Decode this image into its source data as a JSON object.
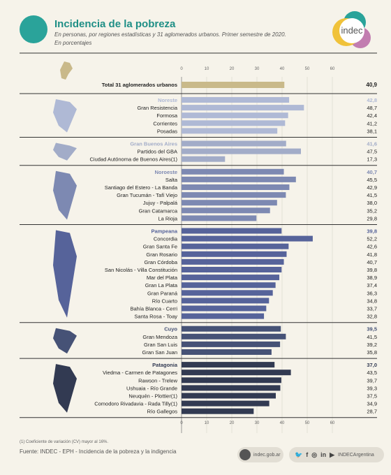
{
  "header": {
    "title": "Incidencia de la pobreza",
    "subtitle": "En personas, por regiones estadísticas y 31 aglomerados urbanos. Primer semestre de 2020.",
    "units": "En porcentajes",
    "logo_text": "indec"
  },
  "footer": {
    "footnote": "(1) Coeficiente de variación (CV) mayor al 16%.",
    "source": "Fuente: INDEC - EPH - Incidencia de la pobreza y la indigencia",
    "website": "indec.gob.ar",
    "social_handle": "INDECArgentina"
  },
  "colors": {
    "title": "#1f8f86",
    "total": "#c9b98a",
    "noreste": "#afb9d5",
    "gba": "#a2acc8",
    "noroeste": "#7d89b2",
    "pampeana": "#56639a",
    "cuyo": "#465276",
    "patagonia": "#323a52"
  },
  "chart_data": {
    "type": "bar",
    "orientation": "horizontal",
    "xlim": [
      0,
      60
    ],
    "xticks": [
      "0",
      "10",
      "20",
      "30",
      "40",
      "50",
      "60"
    ],
    "total": {
      "label": "Total 31 aglomerados urbanos",
      "value": 40.9,
      "display": "40,9"
    },
    "groups": [
      {
        "region": "Noreste",
        "value": 42.8,
        "display": "42,8",
        "color": "noreste",
        "items": [
          {
            "label": "Gran Resistencia",
            "value": 48.7,
            "display": "48,7"
          },
          {
            "label": "Formosa",
            "value": 42.4,
            "display": "42,4"
          },
          {
            "label": "Corrientes",
            "value": 41.2,
            "display": "41,2"
          },
          {
            "label": "Posadas",
            "value": 38.1,
            "display": "38,1"
          }
        ]
      },
      {
        "region": "Gran Buenos Aires",
        "value": 41.6,
        "display": "41,6",
        "color": "gba",
        "items": [
          {
            "label": "Partidos del GBA",
            "value": 47.5,
            "display": "47,5"
          },
          {
            "label": "Ciudad Autónoma de Buenos Aires",
            "note": "(1)",
            "value": 17.3,
            "display": "17,3"
          }
        ]
      },
      {
        "region": "Noroeste",
        "value": 40.7,
        "display": "40,7",
        "color": "noroeste",
        "items": [
          {
            "label": "Salta",
            "value": 45.5,
            "display": "45,5"
          },
          {
            "label": "Santiago del Estero - La Banda",
            "value": 42.9,
            "display": "42,9"
          },
          {
            "label": "Gran Tucumán - Tafí Viejo",
            "value": 41.5,
            "display": "41,5"
          },
          {
            "label": "Jujuy - Palpalá",
            "value": 38.0,
            "display": "38,0"
          },
          {
            "label": "Gran Catamarca",
            "value": 35.2,
            "display": "35,2"
          },
          {
            "label": "La Rioja",
            "value": 29.8,
            "display": "29,8"
          }
        ]
      },
      {
        "region": "Pampeana",
        "value": 39.8,
        "display": "39,8",
        "color": "pampeana",
        "items": [
          {
            "label": "Concordia",
            "value": 52.2,
            "display": "52,2"
          },
          {
            "label": "Gran Santa Fe",
            "value": 42.6,
            "display": "42,6"
          },
          {
            "label": "Gran Rosario",
            "value": 41.8,
            "display": "41,8"
          },
          {
            "label": "Gran Córdoba",
            "value": 40.7,
            "display": "40,7"
          },
          {
            "label": "San Nicolás - Villa Constitución",
            "value": 39.8,
            "display": "39,8"
          },
          {
            "label": "Mar del Plata",
            "value": 38.9,
            "display": "38,9"
          },
          {
            "label": "Gran La Plata",
            "value": 37.4,
            "display": "37,4"
          },
          {
            "label": "Gran Paraná",
            "value": 36.3,
            "display": "36,3"
          },
          {
            "label": "Río Cuarto",
            "value": 34.8,
            "display": "34,8"
          },
          {
            "label": "Bahía Blanca - Cerri",
            "value": 33.7,
            "display": "33,7"
          },
          {
            "label": "Santa Rosa - Toay",
            "value": 32.8,
            "display": "32,8"
          }
        ]
      },
      {
        "region": "Cuyo",
        "value": 39.5,
        "display": "39,5",
        "color": "cuyo",
        "items": [
          {
            "label": "Gran Mendoza",
            "value": 41.5,
            "display": "41,5"
          },
          {
            "label": "Gran San Luis",
            "value": 39.2,
            "display": "39,2"
          },
          {
            "label": "Gran San Juan",
            "value": 35.8,
            "display": "35,8"
          }
        ]
      },
      {
        "region": "Patagonia",
        "value": 37.0,
        "display": "37,0",
        "color": "patagonia",
        "items": [
          {
            "label": "Viedma - Carmen de Patagones",
            "value": 43.5,
            "display": "43,5"
          },
          {
            "label": "Rawson - Trelew",
            "value": 39.7,
            "display": "39,7"
          },
          {
            "label": "Ushuaia - Río Grande",
            "value": 39.3,
            "display": "39,3"
          },
          {
            "label": "Neuquén - Plottier",
            "note": "(1)",
            "value": 37.5,
            "display": "37,5"
          },
          {
            "label": "Comodoro Rivadavia - Rada Tilly",
            "note": "(1)",
            "value": 34.9,
            "display": "34,9"
          },
          {
            "label": "Río Gallegos",
            "value": 28.7,
            "display": "28,7"
          }
        ]
      }
    ]
  }
}
